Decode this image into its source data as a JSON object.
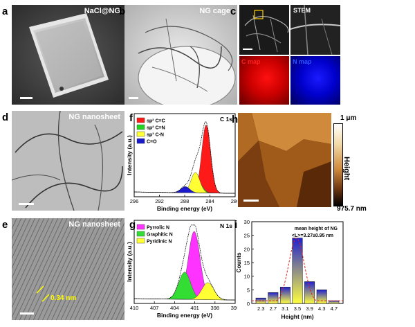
{
  "panels": {
    "a": {
      "letter": "a",
      "label": "NaCl@NG"
    },
    "b": {
      "letter": "b",
      "label": "NG cage"
    },
    "c": {
      "letter": "c",
      "stem": "STEM",
      "c_map": "C map",
      "n_map": "N map"
    },
    "d": {
      "letter": "d",
      "label": "NG nanosheet"
    },
    "e": {
      "letter": "e",
      "label": "NG nanosheet",
      "annotation": "0.34 nm"
    },
    "h": {
      "letter": "h",
      "top_value": "1 μm",
      "bottom_value": "975.7 nm",
      "bar_title": "Height"
    }
  },
  "chart_data": [
    {
      "panel": "f",
      "type": "area",
      "title": "C 1s",
      "xlabel": "Binding energy (eV)",
      "ylabel": "Intensity (a.u.)",
      "xlim": [
        296,
        280
      ],
      "xticks": [
        "296",
        "292",
        "288",
        "284",
        "280"
      ],
      "legend_position": "top-left",
      "series": [
        {
          "name": "sp² C=C",
          "color": "#ff1a1a",
          "center": 284.6,
          "height": 1.0
        },
        {
          "name": "sp² C=N",
          "color": "#22d422",
          "center": 285.9,
          "height": 0.16
        },
        {
          "name": "sp³ C-N",
          "color": "#ffff33",
          "center": 286.3,
          "height": 0.3
        },
        {
          "name": "C=O",
          "color": "#1a1acc",
          "center": 287.9,
          "height": 0.09
        }
      ]
    },
    {
      "panel": "g",
      "type": "area",
      "title": "N 1s",
      "xlabel": "Binding energy (eV)",
      "ylabel": "Intensity (a.u.)",
      "xlim": [
        411,
        394
      ],
      "xticks": [
        "410",
        "407",
        "404",
        "401",
        "398",
        "395"
      ],
      "legend_position": "top-left",
      "series": [
        {
          "name": "Pyrrolic N",
          "color": "#ff33ff",
          "center": 400.9,
          "height": 1.0
        },
        {
          "name": "Graphitic N",
          "color": "#33dd33",
          "center": 402.5,
          "height": 0.4
        },
        {
          "name": "Pyridinic N",
          "color": "#ffff33",
          "center": 398.6,
          "height": 0.25
        }
      ]
    },
    {
      "panel": "i",
      "type": "bar",
      "title": "mean height of NG",
      "subtitle": "<L>=3.27±0.95 nm",
      "xlabel": "Height (nm)",
      "ylabel": "Counts",
      "ylim": [
        0,
        30
      ],
      "yticks": [
        "0",
        "5",
        "10",
        "15",
        "20",
        "25",
        "30"
      ],
      "categories": [
        "2.3",
        "2.7",
        "3.1",
        "3.5",
        "3.9",
        "4.3",
        "4.7"
      ],
      "values": [
        2,
        4,
        6,
        24,
        8,
        5,
        1
      ]
    }
  ],
  "panel_letters": {
    "f": "f",
    "g": "g",
    "i": "i"
  }
}
